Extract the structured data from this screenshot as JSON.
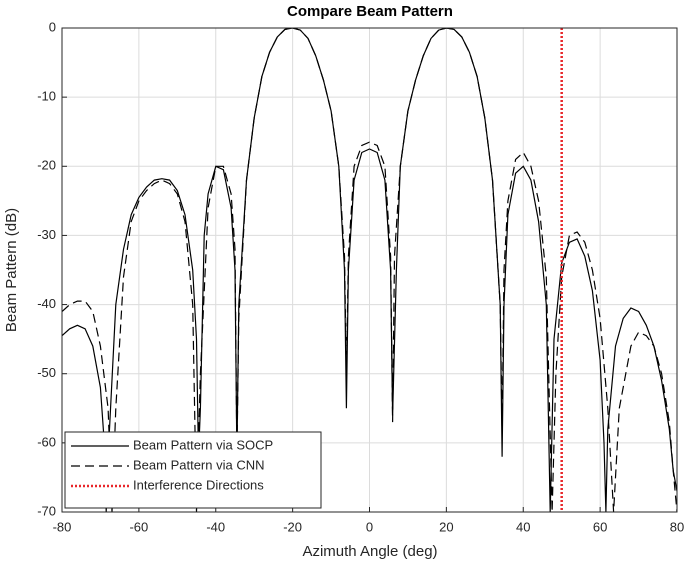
{
  "chart_data": {
    "type": "line",
    "title": "Compare Beam Pattern",
    "x_label": "Azimuth Angle (deg)",
    "y_label": "Beam Pattern (dB)",
    "xlim": [
      -80,
      80
    ],
    "ylim": [
      -70,
      0
    ],
    "xticks": [
      -80,
      -60,
      -40,
      -20,
      0,
      20,
      40,
      60,
      80
    ],
    "yticks": [
      -70,
      -60,
      -50,
      -40,
      -30,
      -20,
      -10,
      0
    ],
    "grid": true,
    "legend": "lower left",
    "series": [
      {
        "name": "Beam Pattern via SOCP",
        "color": "#000000",
        "dash": "solid",
        "x": [
          -80,
          -78,
          -76,
          -74,
          -72,
          -70,
          -69,
          -68.5,
          -68,
          -66,
          -64,
          -62,
          -60,
          -58,
          -56,
          -54,
          -52,
          -50,
          -48,
          -46,
          -45,
          -44.5,
          -44,
          -43,
          -42,
          -40,
          -38,
          -36,
          -35,
          -34.5,
          -34,
          -32,
          -30,
          -28,
          -26,
          -24,
          -22,
          -20,
          -18,
          -16,
          -14,
          -12,
          -10,
          -8,
          -6.5,
          -6,
          -5.5,
          -4,
          -2,
          0,
          2,
          4,
          5.5,
          6,
          7,
          8,
          10,
          12,
          14,
          16,
          18,
          20,
          22,
          24,
          26,
          28,
          30,
          32,
          34,
          34.5,
          35,
          36,
          38,
          40,
          42,
          44,
          46,
          47,
          48,
          50,
          52,
          54,
          56,
          58,
          60,
          61,
          61.5,
          62,
          64,
          66,
          68,
          70,
          72,
          74,
          76,
          78,
          79,
          80
        ],
        "values": [
          -44.5,
          -43.5,
          -43,
          -43.5,
          -46,
          -52,
          -60,
          -70,
          -62,
          -40,
          -32,
          -27,
          -24.5,
          -23,
          -22,
          -21.8,
          -22,
          -23.5,
          -27,
          -35,
          -45,
          -62,
          -55,
          -30,
          -24,
          -20,
          -20.5,
          -26,
          -35,
          -62,
          -40,
          -22,
          -13,
          -7,
          -3.5,
          -1.3,
          -0.2,
          0,
          -0.3,
          -1.5,
          -4,
          -7.5,
          -12,
          -20,
          -35,
          -55,
          -35,
          -22,
          -18,
          -17.5,
          -18,
          -22,
          -35,
          -56,
          -35,
          -20,
          -12,
          -7.5,
          -4,
          -1.5,
          -0.3,
          0,
          -0.2,
          -1.3,
          -3.5,
          -7,
          -13,
          -22,
          -40,
          -62,
          -40,
          -27,
          -21,
          -20,
          -22,
          -28,
          -40,
          -70,
          -45,
          -34,
          -31,
          -30.5,
          -33,
          -38,
          -48,
          -60,
          -70,
          -58,
          -46,
          -42,
          -40.5,
          -41,
          -43,
          -46,
          -51,
          -58,
          -64,
          -67
        ]
      },
      {
        "name": "Beam Pattern via CNN",
        "color": "#000000",
        "dash": "dashed",
        "x": [
          -80,
          -78,
          -76,
          -74,
          -72,
          -70,
          -68,
          -67,
          -66,
          -64,
          -62,
          -60,
          -58,
          -56,
          -54,
          -52,
          -50,
          -48,
          -46,
          -45,
          -44,
          -42,
          -40,
          -38,
          -36,
          -35,
          -34.5,
          -34,
          -32,
          -30,
          -28,
          -26,
          -24,
          -22,
          -20,
          -18,
          -16,
          -14,
          -12,
          -10,
          -8,
          -6.5,
          -6,
          -5.5,
          -4,
          -2,
          0,
          2,
          4,
          5.5,
          6,
          6.5,
          8,
          10,
          12,
          14,
          16,
          18,
          20,
          22,
          24,
          26,
          28,
          30,
          32,
          34,
          34.5,
          35,
          36,
          38,
          40,
          42,
          44,
          46,
          47.5,
          48.5,
          50,
          52,
          54,
          56,
          58,
          60,
          62,
          63.5,
          65,
          68,
          70,
          72,
          74,
          76,
          78,
          79,
          80
        ],
        "values": [
          -41,
          -40,
          -39.5,
          -39.5,
          -41,
          -46,
          -55,
          -70,
          -55,
          -36,
          -28,
          -25,
          -23.5,
          -22.5,
          -22,
          -22.5,
          -24,
          -28,
          -40,
          -70,
          -50,
          -26,
          -20,
          -20,
          -24,
          -32,
          -62,
          -42,
          -22,
          -13,
          -7,
          -3.5,
          -1.3,
          -0.2,
          0,
          -0.3,
          -1.5,
          -4,
          -7.5,
          -12,
          -20,
          -33,
          -50,
          -33,
          -20,
          -17,
          -16.5,
          -17,
          -20,
          -33,
          -57,
          -33,
          -20,
          -12,
          -7.5,
          -4,
          -1.5,
          -0.3,
          0,
          -0.2,
          -1.3,
          -3.5,
          -7,
          -13,
          -22,
          -40,
          -58,
          -35,
          -25,
          -19,
          -18,
          -20,
          -25,
          -36,
          -70,
          -50,
          -36,
          -30,
          -29.5,
          -31,
          -35,
          -42,
          -55,
          -70,
          -55,
          -46,
          -44,
          -44.5,
          -46,
          -50,
          -57,
          -64,
          -70
        ]
      }
    ],
    "interference": {
      "name": "Interference Directions",
      "x": 50,
      "color": "#e8262a"
    }
  }
}
